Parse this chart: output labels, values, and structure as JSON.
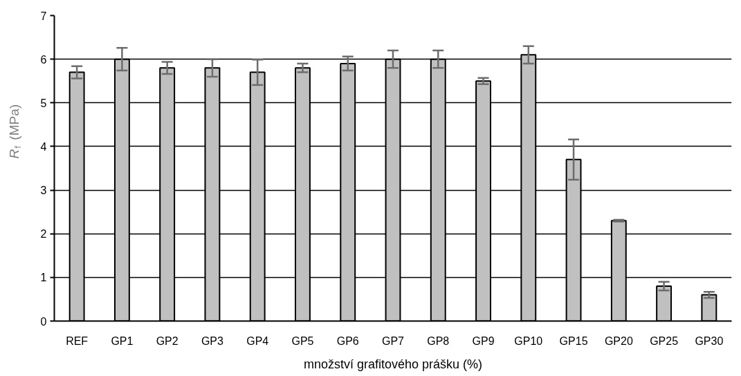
{
  "chart_data": {
    "type": "bar",
    "xlabel": "množství grafitového prášku (%)",
    "ylabel": "R$_{f}$ (MPa)",
    "categories": [
      "REF",
      "GP1",
      "GP2",
      "GP3",
      "GP4",
      "GP5",
      "GP6",
      "GP7",
      "GP8",
      "GP9",
      "GP10",
      "GP15",
      "GP20",
      "GP25",
      "GP30"
    ],
    "values": [
      5.7,
      6.0,
      5.8,
      5.8,
      5.7,
      5.8,
      5.9,
      6.0,
      6.0,
      5.5,
      6.1,
      3.7,
      2.3,
      0.8,
      0.6
    ],
    "errors": [
      0.14,
      0.26,
      0.14,
      0.2,
      0.29,
      0.1,
      0.16,
      0.2,
      0.2,
      0.07,
      0.2,
      0.46,
      0.02,
      0.1,
      0.07
    ],
    "color": "#c0c0c0",
    "ylim": [
      0,
      7
    ],
    "yticks": [
      0,
      1,
      2,
      3,
      4,
      5,
      6,
      7
    ],
    "grid": "y"
  }
}
